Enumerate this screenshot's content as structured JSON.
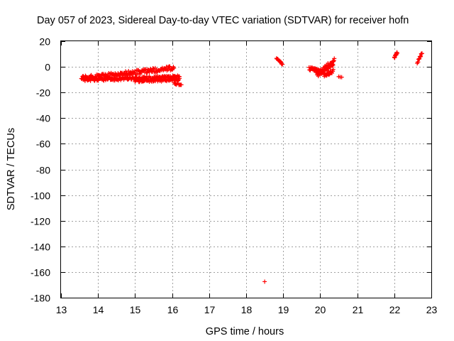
{
  "chart_data": {
    "type": "scatter",
    "title": "Day 057 of 2023, Sidereal Day-to-day VTEC variation (SDTVAR) for receiver hofn",
    "xlabel": "GPS time / hours",
    "ylabel": "SDTVAR / TECUs",
    "xlim": [
      13,
      23
    ],
    "ylim": [
      -180,
      20
    ],
    "xticks": [
      13,
      14,
      15,
      16,
      17,
      18,
      19,
      20,
      21,
      22,
      23
    ],
    "yticks": [
      20,
      0,
      -20,
      -40,
      -60,
      -80,
      -100,
      -120,
      -140,
      -160,
      -180
    ],
    "grid": true,
    "marker": "+",
    "series_color": "#ff0000",
    "segments": [
      {
        "name": "arc-a",
        "x": [
          13.55,
          16.05
        ],
        "y": [
          -9,
          -1
        ],
        "spread": 3.5,
        "n": 160
      },
      {
        "name": "arc-b",
        "x": [
          13.6,
          16.2
        ],
        "y": [
          -10,
          -8
        ],
        "spread": 2.5,
        "n": 160
      },
      {
        "name": "arc-c",
        "x": [
          15.0,
          16.2
        ],
        "y": [
          -11,
          -10
        ],
        "spread": 2,
        "n": 60
      },
      {
        "name": "arc-d",
        "x": [
          16.05,
          16.25
        ],
        "y": [
          -13,
          -14
        ],
        "spread": 1.5,
        "n": 10
      },
      {
        "name": "arc-e",
        "x": [
          18.82,
          18.98
        ],
        "y": [
          7,
          2
        ],
        "spread": 1,
        "n": 14
      },
      {
        "name": "arc-f",
        "x": [
          19.7,
          20.1
        ],
        "y": [
          -1,
          -4
        ],
        "spread": 3,
        "n": 40
      },
      {
        "name": "arc-g",
        "x": [
          19.9,
          20.38
        ],
        "y": [
          -6,
          4
        ],
        "spread": 5,
        "n": 60
      },
      {
        "name": "arc-h",
        "x": [
          20.1,
          20.35
        ],
        "y": [
          -7,
          -3
        ],
        "spread": 3,
        "n": 24
      },
      {
        "name": "arc-i",
        "x": [
          20.5,
          20.58
        ],
        "y": [
          -7.5,
          -8
        ],
        "spread": 0.5,
        "n": 3
      },
      {
        "name": "arc-j",
        "x": [
          22.0,
          22.08
        ],
        "y": [
          7,
          11
        ],
        "spread": 1.5,
        "n": 12
      },
      {
        "name": "arc-k",
        "x": [
          22.62,
          22.75
        ],
        "y": [
          3,
          11
        ],
        "spread": 1.5,
        "n": 12
      }
    ],
    "outliers": [
      {
        "x": 18.5,
        "y": -167.5
      }
    ]
  }
}
